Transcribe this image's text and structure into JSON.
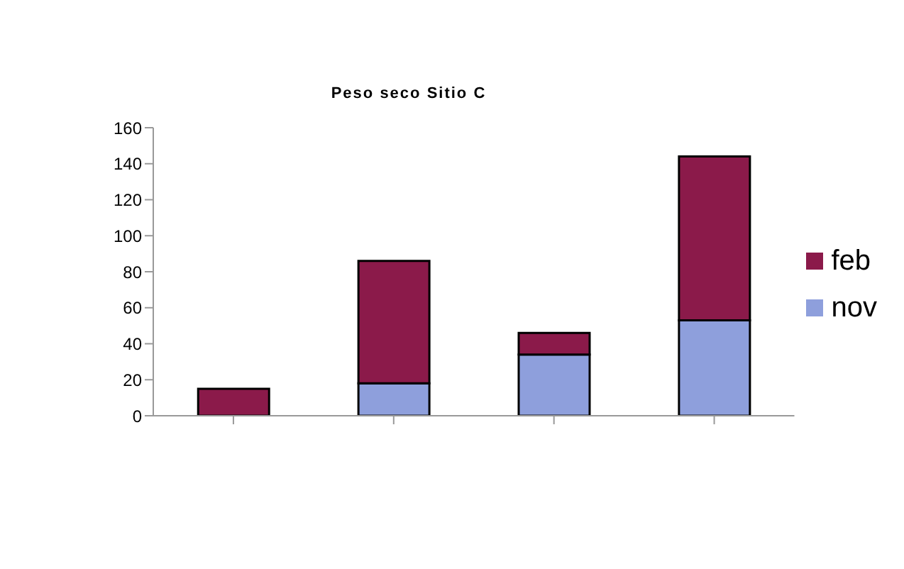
{
  "chart_data": {
    "type": "bar",
    "title": "Peso seco Sitio C",
    "categories": [
      null,
      null,
      null,
      null
    ],
    "stacked": true,
    "series": [
      {
        "name": "nov",
        "color": "#8e9fdc",
        "values": [
          0,
          18,
          34,
          53
        ]
      },
      {
        "name": "feb",
        "color": "#8b1a4a",
        "values": [
          15,
          68,
          12,
          91
        ]
      }
    ],
    "ylim": [
      0,
      160
    ],
    "yticks": [
      0,
      20,
      40,
      60,
      80,
      100,
      120,
      140,
      160
    ],
    "grid": false,
    "legend": "right"
  }
}
